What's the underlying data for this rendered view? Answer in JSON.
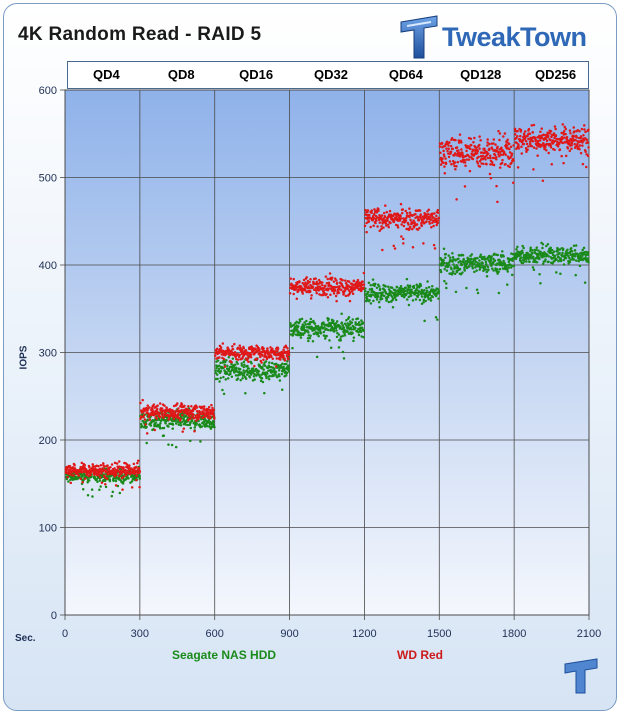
{
  "brand": {
    "name": "TweakTown",
    "color": "#2f68b6"
  },
  "chart_data": {
    "type": "scatter",
    "title": "4K Random Read - RAID 5",
    "xlabel": "Sec.",
    "ylabel": "IOPS",
    "xlim": [
      0,
      2100
    ],
    "ylim": [
      0,
      600
    ],
    "x_ticks": [
      "0",
      "300",
      "600",
      "900",
      "1200",
      "1500",
      "1800",
      "2100"
    ],
    "y_ticks": [
      "0",
      "100",
      "200",
      "300",
      "400",
      "500",
      "600"
    ],
    "grid": true,
    "queue_depth_segments": [
      {
        "label": "QD4",
        "x_range": [
          0,
          300
        ]
      },
      {
        "label": "QD8",
        "x_range": [
          300,
          600
        ]
      },
      {
        "label": "QD16",
        "x_range": [
          600,
          900
        ]
      },
      {
        "label": "QD32",
        "x_range": [
          900,
          1200
        ]
      },
      {
        "label": "QD64",
        "x_range": [
          1200,
          1500
        ]
      },
      {
        "label": "QD128",
        "x_range": [
          1500,
          1800
        ]
      },
      {
        "label": "QD256",
        "x_range": [
          1800,
          2100
        ]
      }
    ],
    "series": [
      {
        "name": "Seagate NAS HDD",
        "color": "#1a8a1a",
        "segment_mean_iops": [
          159,
          222,
          280,
          328,
          368,
          402,
          411
        ],
        "segment_spread_iops": [
          6,
          8,
          9,
          9,
          8,
          9,
          8
        ]
      },
      {
        "name": "WD Red",
        "color": "#e01818",
        "segment_mean_iops": [
          165,
          232,
          300,
          375,
          453,
          528,
          543
        ],
        "segment_spread_iops": [
          6,
          7,
          7,
          8,
          9,
          14,
          12
        ]
      }
    ],
    "legend": [
      "Seagate NAS HDD",
      "WD Red"
    ]
  }
}
